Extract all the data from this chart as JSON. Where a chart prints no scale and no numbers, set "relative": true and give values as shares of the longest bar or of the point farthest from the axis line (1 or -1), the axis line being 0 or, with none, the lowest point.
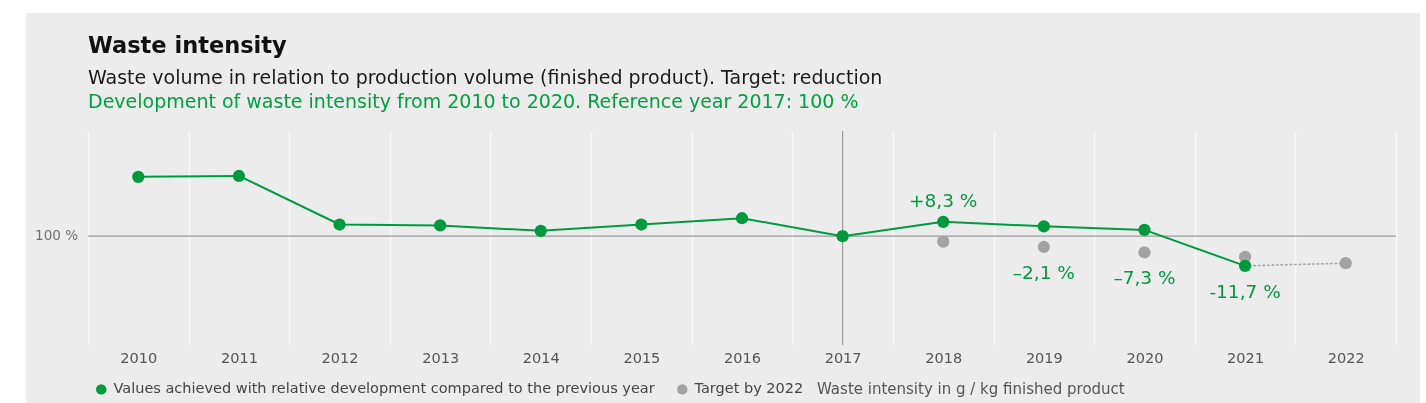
{
  "chart_data": {
    "type": "line",
    "title": "Waste intensity",
    "subtitle": "Waste volume in relation to production volume (finished product). Target: reduction",
    "annotations": [
      "Development of waste intensity from 2010 to 2020. Reference year 2017: 100 %",
      "Waste intensity in g / kg finished product",
      "100 %",
      {
        "text": "+8,3 %",
        "x": "2018",
        "y": 0.49
      },
      {
        "text": "–2,1 %",
        "x": "2019",
        "y": 0.44
      },
      {
        "text": "–7,3 %",
        "x": "2020",
        "y": 0.4
      },
      {
        "text": "-11,7 %",
        "x": "2021",
        "y": 0
      }
    ],
    "categories": [
      "2010",
      "2011",
      "2012",
      "2013",
      "2014",
      "2015",
      "2016",
      "2017",
      "2018",
      "2019",
      "2020",
      "2021",
      "2022"
    ],
    "relative": true,
    "series": [
      {
        "name": "Values achieved with relative development compared to the previous year",
        "color": "#009a3e",
        "values": [
          0.99,
          1,
          0.46,
          0.45,
          0.39,
          0.46,
          0.53,
          0.33,
          0.49,
          0.44,
          0.4,
          0,
          null
        ]
      },
      {
        "name": "Target by 2022",
        "type": "scatter",
        "color": "#a3a3a3",
        "values": [
          null,
          null,
          null,
          null,
          null,
          null,
          null,
          null,
          0.27,
          0.21,
          0.15,
          0.1,
          0.03
        ]
      },
      {
        "type": "line",
        "color": "#a3a3a3",
        "marker": "none",
        "line_style": "dotted",
        "values": [
          null,
          null,
          null,
          null,
          null,
          null,
          null,
          null,
          null,
          null,
          null,
          0,
          0.03
        ]
      }
    ],
    "ref_lines": [
      {
        "axis": "y",
        "value": 0.33
      },
      {
        "axis": "x",
        "value": "2017"
      }
    ],
    "grid": "x",
    "legend": "bottom left",
    "marker": "circle"
  }
}
